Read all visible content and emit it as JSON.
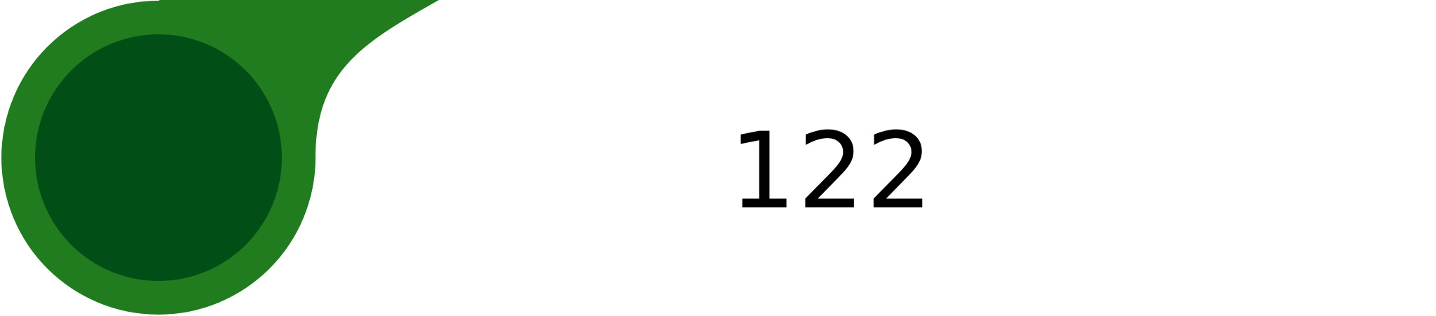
{
  "counter": {
    "value": "122"
  },
  "colors": {
    "outer_shape": "#217b1f",
    "inner_circle": "#014f17",
    "background": "#ffffff",
    "text": "#000000"
  }
}
